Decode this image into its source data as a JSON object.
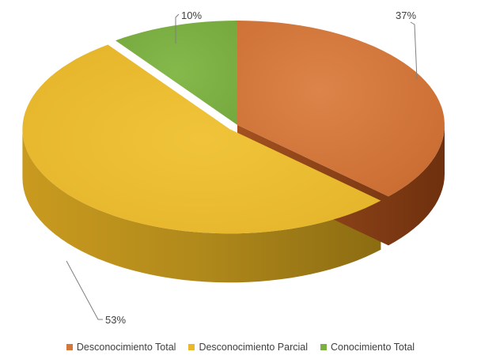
{
  "chart_data": {
    "type": "pie",
    "style": "3d",
    "title": "",
    "categories": [
      "Desconocimiento Total",
      "Desconocimiento Parcial",
      "Conocimiento Total"
    ],
    "values": [
      37,
      53,
      10
    ],
    "labels": [
      "37%",
      "53%",
      "10%"
    ],
    "colors": [
      "#d4773b",
      "#e8b92c",
      "#7db043"
    ],
    "side_colors": [
      "#8a3f14",
      "#a27c14",
      "#4c7428"
    ],
    "exploded": [
      "Desconocimiento Parcial"
    ],
    "legend_position": "bottom"
  }
}
